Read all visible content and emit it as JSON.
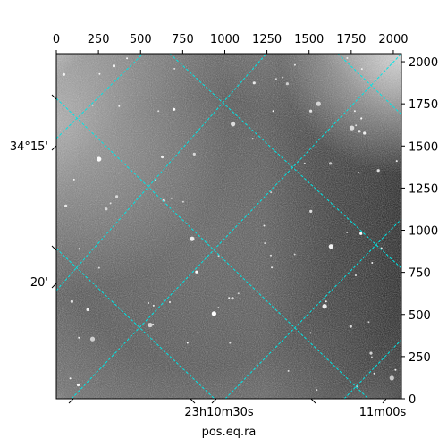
{
  "image": {
    "kind": "astronomical-grayscale-image",
    "colormap": "gray",
    "grid_color": "#00e5e5",
    "background_color": "#ffffff"
  },
  "axes": {
    "x_label": "pos.eq.ra",
    "top_ticks": [
      "0",
      "250",
      "500",
      "750",
      "1000",
      "1250",
      "1500",
      "1750",
      "2000"
    ],
    "top_tick_values": [
      0,
      250,
      500,
      750,
      1000,
      1250,
      1500,
      1750,
      2000
    ],
    "right_ticks": [
      "0",
      "250",
      "500",
      "750",
      "1000",
      "1250",
      "1500",
      "1750",
      "2000"
    ],
    "right_tick_values": [
      0,
      250,
      500,
      750,
      1000,
      1250,
      1500,
      1750,
      2000
    ],
    "pixel_range": [
      0,
      2048
    ],
    "left_ticks": [
      {
        "label": "34°15'"
      },
      {
        "label": "20'"
      }
    ],
    "bottom_ticks": [
      {
        "label": "23h10m30s"
      },
      {
        "label": "11m00s"
      }
    ]
  }
}
